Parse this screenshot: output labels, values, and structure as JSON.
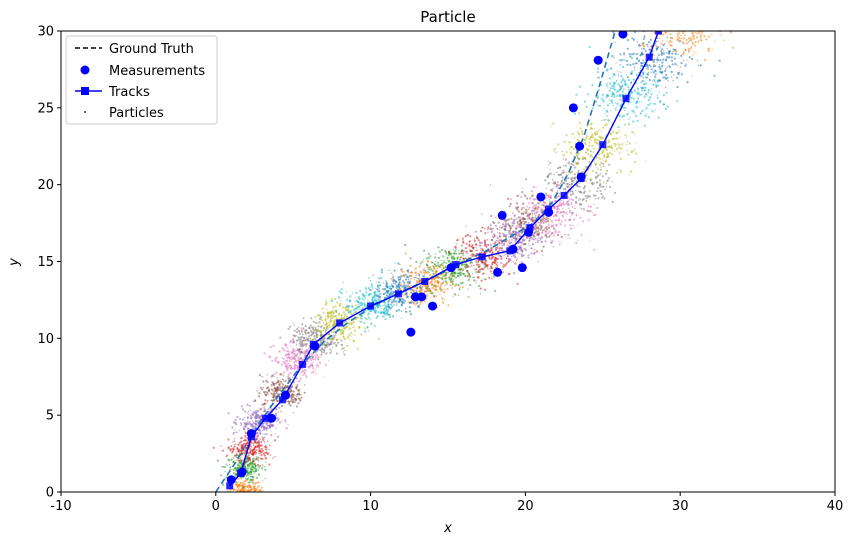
{
  "chart_data": {
    "type": "scatter",
    "title": "Particle",
    "xlabel": "x",
    "ylabel": "y",
    "xlim": [
      -10,
      40
    ],
    "ylim": [
      0,
      30
    ],
    "xticks": [
      -10,
      0,
      10,
      20,
      30,
      40
    ],
    "yticks": [
      0,
      5,
      10,
      15,
      20,
      25,
      30
    ],
    "grid": false,
    "legend": {
      "placement": "top-left",
      "entries": [
        "Ground Truth",
        "Measurements",
        "Tracks",
        "Particles"
      ]
    },
    "ground_truth": {
      "name": "Ground Truth",
      "color": "#1f77b4",
      "x": [
        0,
        1.2,
        2.5,
        4.0,
        5.5,
        7.0,
        8.5,
        10.0,
        11.5,
        13.0,
        14.5,
        16.0,
        17.5,
        19.0,
        20.5,
        21.7,
        22.8,
        23.8,
        24.8,
        25.8
      ],
      "y": [
        0,
        1.8,
        4.0,
        6.2,
        8.2,
        9.8,
        11.0,
        12.0,
        12.8,
        13.5,
        14.2,
        15.0,
        15.7,
        16.6,
        17.5,
        18.8,
        20.8,
        23.2,
        26.5,
        30.0
      ]
    },
    "measurements": {
      "name": "Measurements",
      "color": "#0000ff",
      "x": [
        1.0,
        1.7,
        2.3,
        3.6,
        4.5,
        6.4,
        12.6,
        12.9,
        13.3,
        14.0,
        15.2,
        18.2,
        18.5,
        19.2,
        19.8,
        20.2,
        21.0,
        21.5,
        23.1,
        23.5,
        23.6,
        24.7,
        26.3
      ],
      "y": [
        0.8,
        1.3,
        3.8,
        4.8,
        6.3,
        9.5,
        10.4,
        12.7,
        12.7,
        12.1,
        14.6,
        14.3,
        18.0,
        15.8,
        14.6,
        16.9,
        19.2,
        18.2,
        25.0,
        22.5,
        20.5,
        28.1,
        29.8
      ]
    },
    "tracks": {
      "name": "Tracks",
      "color": "#0000ff",
      "x": [
        0.9,
        1.6,
        2.3,
        3.2,
        4.3,
        5.6,
        6.3,
        8.0,
        10.0,
        11.8,
        13.5,
        15.5,
        17.2,
        19.0,
        20.3,
        21.5,
        22.5,
        23.6,
        25.0,
        26.5,
        28.0,
        28.6
      ],
      "y": [
        0.4,
        1.2,
        3.6,
        4.8,
        6.0,
        8.3,
        9.6,
        11.0,
        12.1,
        12.9,
        13.7,
        14.8,
        15.3,
        15.7,
        17.2,
        18.4,
        19.3,
        20.4,
        22.6,
        25.6,
        28.3,
        30.0
      ]
    },
    "particles": {
      "name": "Particles",
      "clusters": [
        {
          "x": 1.9,
          "y": 0.0,
          "color": "#ff7f0e"
        },
        {
          "x": 1.8,
          "y": 1.6,
          "color": "#2ca02c"
        },
        {
          "x": 2.2,
          "y": 2.8,
          "color": "#d62728"
        },
        {
          "x": 2.8,
          "y": 4.5,
          "color": "#9467bd"
        },
        {
          "x": 4.3,
          "y": 6.5,
          "color": "#8c564b"
        },
        {
          "x": 5.3,
          "y": 8.6,
          "color": "#e377c2"
        },
        {
          "x": 6.5,
          "y": 9.9,
          "color": "#7f7f7f"
        },
        {
          "x": 8.0,
          "y": 11.0,
          "color": "#bcbd22"
        },
        {
          "x": 10.0,
          "y": 12.2,
          "color": "#17becf"
        },
        {
          "x": 12.0,
          "y": 13.2,
          "color": "#1f77b4"
        },
        {
          "x": 13.6,
          "y": 13.6,
          "color": "#ff7f0e"
        },
        {
          "x": 15.4,
          "y": 14.6,
          "color": "#2ca02c"
        },
        {
          "x": 17.3,
          "y": 15.4,
          "color": "#d62728"
        },
        {
          "x": 19.2,
          "y": 16.4,
          "color": "#9467bd"
        },
        {
          "x": 20.2,
          "y": 17.5,
          "color": "#8c564b"
        },
        {
          "x": 21.7,
          "y": 18.2,
          "color": "#e377c2"
        },
        {
          "x": 23.3,
          "y": 20.2,
          "color": "#7f7f7f"
        },
        {
          "x": 24.6,
          "y": 22.4,
          "color": "#bcbd22"
        },
        {
          "x": 26.5,
          "y": 25.8,
          "color": "#17becf"
        },
        {
          "x": 28.2,
          "y": 28.0,
          "color": "#1f77b4"
        },
        {
          "x": 30.0,
          "y": 30.0,
          "color": "#ff7f0e"
        }
      ]
    }
  }
}
